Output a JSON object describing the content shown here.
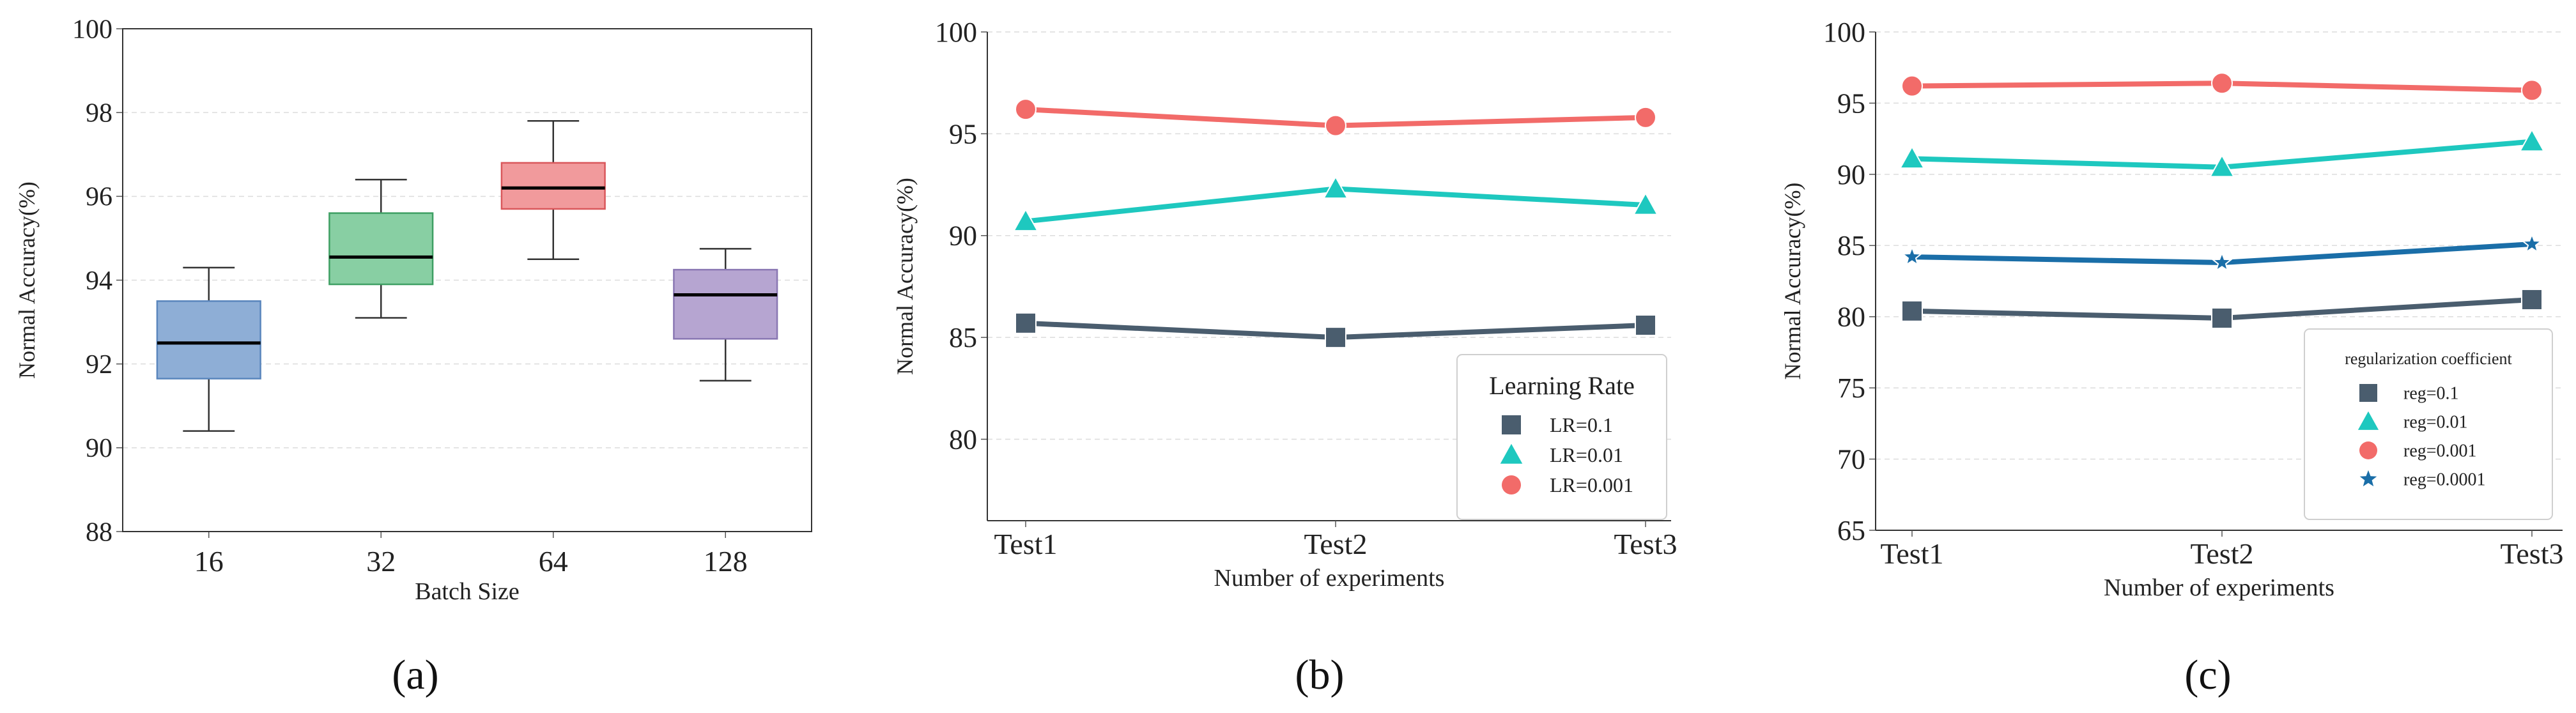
{
  "chart_data": [
    {
      "type": "box",
      "panel_label": "(a)",
      "xlabel": "Batch Size",
      "ylabel": "Normal Accuracy(%)",
      "ylim": [
        88,
        100
      ],
      "yticks": [
        88,
        90,
        92,
        94,
        96,
        98,
        100
      ],
      "grid": "horizontal dashed",
      "boxes": [
        {
          "category": "16",
          "whisker_low": 90.4,
          "q1": 91.65,
          "median": 92.5,
          "q3": 93.5,
          "whisker_high": 94.3,
          "fill": "#8eaed6",
          "edge": "#5a86bd"
        },
        {
          "category": "32",
          "whisker_low": 93.1,
          "q1": 93.9,
          "median": 94.55,
          "q3": 95.6,
          "whisker_high": 96.4,
          "fill": "#88cfa3",
          "edge": "#3e9f63"
        },
        {
          "category": "64",
          "whisker_low": 94.5,
          "q1": 95.7,
          "median": 96.2,
          "q3": 96.8,
          "whisker_high": 97.8,
          "fill": "#f19a9c",
          "edge": "#d9575b"
        },
        {
          "category": "128",
          "whisker_low": 91.6,
          "q1": 92.6,
          "median": 93.65,
          "q3": 94.25,
          "whisker_high": 94.75,
          "fill": "#b6a5d1",
          "edge": "#8a77b3"
        }
      ]
    },
    {
      "type": "line",
      "panel_label": "(b)",
      "xlabel": "Number of experiments",
      "ylabel": "Normal Accuracy(%)",
      "categories": [
        "Test1",
        "Test2",
        "Test3"
      ],
      "ylim": [
        76,
        100
      ],
      "yticks": [
        80,
        85,
        90,
        95,
        100
      ],
      "grid": "horizontal dashed",
      "legend_title": "Learning Rate",
      "legend_position": "lower-right",
      "series": [
        {
          "name": "LR=0.1",
          "values": [
            85.7,
            85.0,
            85.6
          ],
          "color": "#4a5d6e",
          "marker": "square"
        },
        {
          "name": "LR=0.01",
          "values": [
            90.7,
            92.3,
            91.5
          ],
          "color": "#1ec8bf",
          "marker": "triangle"
        },
        {
          "name": "LR=0.001",
          "values": [
            96.2,
            95.4,
            95.8
          ],
          "color": "#f26b69",
          "marker": "circle"
        }
      ]
    },
    {
      "type": "line",
      "panel_label": "(c)",
      "xlabel": "Number of experiments",
      "ylabel": "Normal Accuracy(%)",
      "categories": [
        "Test1",
        "Test2",
        "Test3"
      ],
      "ylim": [
        65,
        100
      ],
      "yticks": [
        65,
        70,
        75,
        80,
        85,
        90,
        95,
        100
      ],
      "grid": "horizontal dashed",
      "legend_title": "regularization coefficient",
      "legend_position": "lower-right",
      "series": [
        {
          "name": "reg=0.1",
          "values": [
            80.4,
            79.9,
            81.2
          ],
          "color": "#4a5d6e",
          "marker": "square"
        },
        {
          "name": "reg=0.01",
          "values": [
            91.1,
            90.5,
            92.3
          ],
          "color": "#1ec8bf",
          "marker": "triangle"
        },
        {
          "name": "reg=0.001",
          "values": [
            96.2,
            96.4,
            95.9
          ],
          "color": "#f26b69",
          "marker": "circle"
        },
        {
          "name": "reg=0.0001",
          "values": [
            84.2,
            83.8,
            85.1
          ],
          "color": "#1a6ea8",
          "marker": "star"
        }
      ]
    }
  ]
}
